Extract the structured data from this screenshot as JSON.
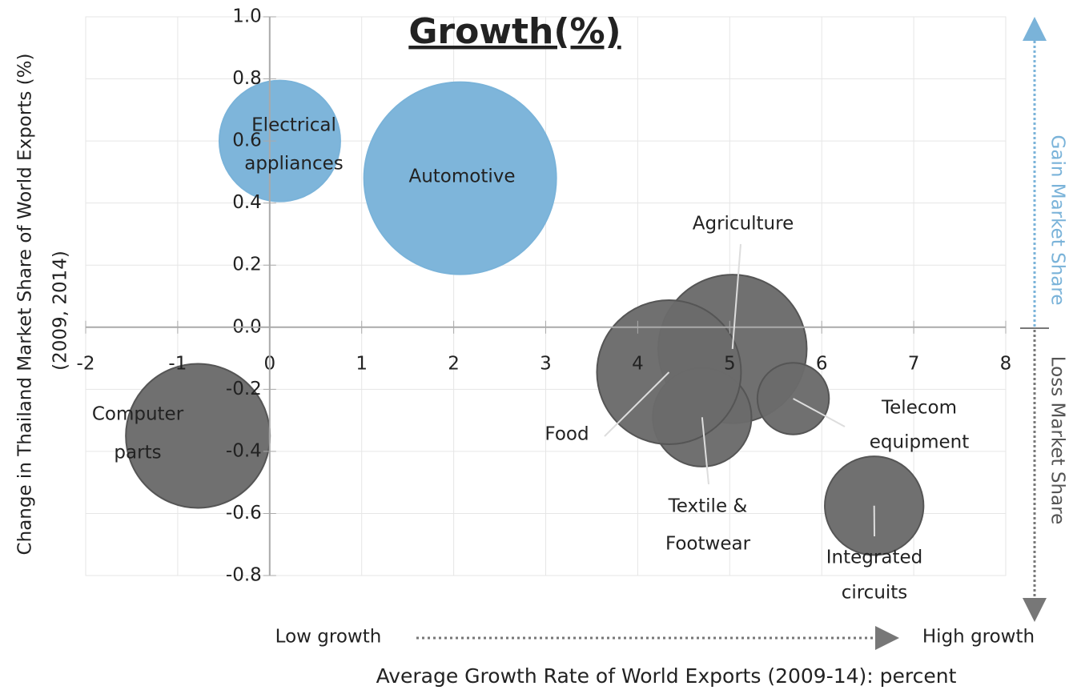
{
  "chart_data": {
    "type": "bubble",
    "title": "Growth(%)",
    "x_label": "Average Growth Rate of World Exports (2009-14): percent",
    "y_label": [
      "Change in Thailand Market Share of World Exports (%)",
      "(2009, 2014)"
    ],
    "annotations": {
      "low": "Low growth",
      "high": "High growth",
      "gain": "Gain Market Share",
      "loss": "Loss Market Share"
    },
    "points": [
      {
        "label": [
          "Electrical",
          "appliances"
        ],
        "x": 0.11,
        "y": 0.6,
        "size": 57,
        "color": "#7ab3d9"
      },
      {
        "label": [
          "Automotive"
        ],
        "x": 2.07,
        "y": 0.48,
        "size": 144,
        "color": "#7ab3d9"
      },
      {
        "label": [
          "Agriculture"
        ],
        "x": 5.03,
        "y": -0.07,
        "size": 86,
        "color": "#6b6b6b"
      },
      {
        "label": [
          "Textile &",
          "Footwear"
        ],
        "x": 4.7,
        "y": -0.29,
        "size": 38,
        "color": "#6b6b6b"
      },
      {
        "label": [
          "Food"
        ],
        "x": 4.34,
        "y": -0.145,
        "size": 81,
        "color": "#6b6b6b"
      },
      {
        "label": [
          "Telecom",
          "equipment"
        ],
        "x": 5.69,
        "y": -0.23,
        "size": 20,
        "color": "#6b6b6b"
      },
      {
        "label": [
          "Integrated",
          "circuits"
        ],
        "x": 6.57,
        "y": -0.575,
        "size": 38,
        "color": "#6b6b6b"
      },
      {
        "label": [
          "Computer",
          "parts"
        ],
        "x": -0.78,
        "y": -0.35,
        "size": 81,
        "color": "#6b6b6b"
      }
    ],
    "xlim": [
      -2,
      8
    ],
    "xticks": [
      -2,
      -1,
      0,
      1,
      2,
      3,
      4,
      5,
      6,
      7,
      8
    ],
    "ylim": [
      -0.8,
      1
    ],
    "yticks": [
      -0.8,
      -0.6,
      -0.4,
      -0.2,
      {
        "value": 0,
        "label": "0.0"
      },
      0.2,
      0.4,
      0.6,
      0.8,
      {
        "value": 1,
        "label": "1.0"
      }
    ],
    "grid": true
  }
}
